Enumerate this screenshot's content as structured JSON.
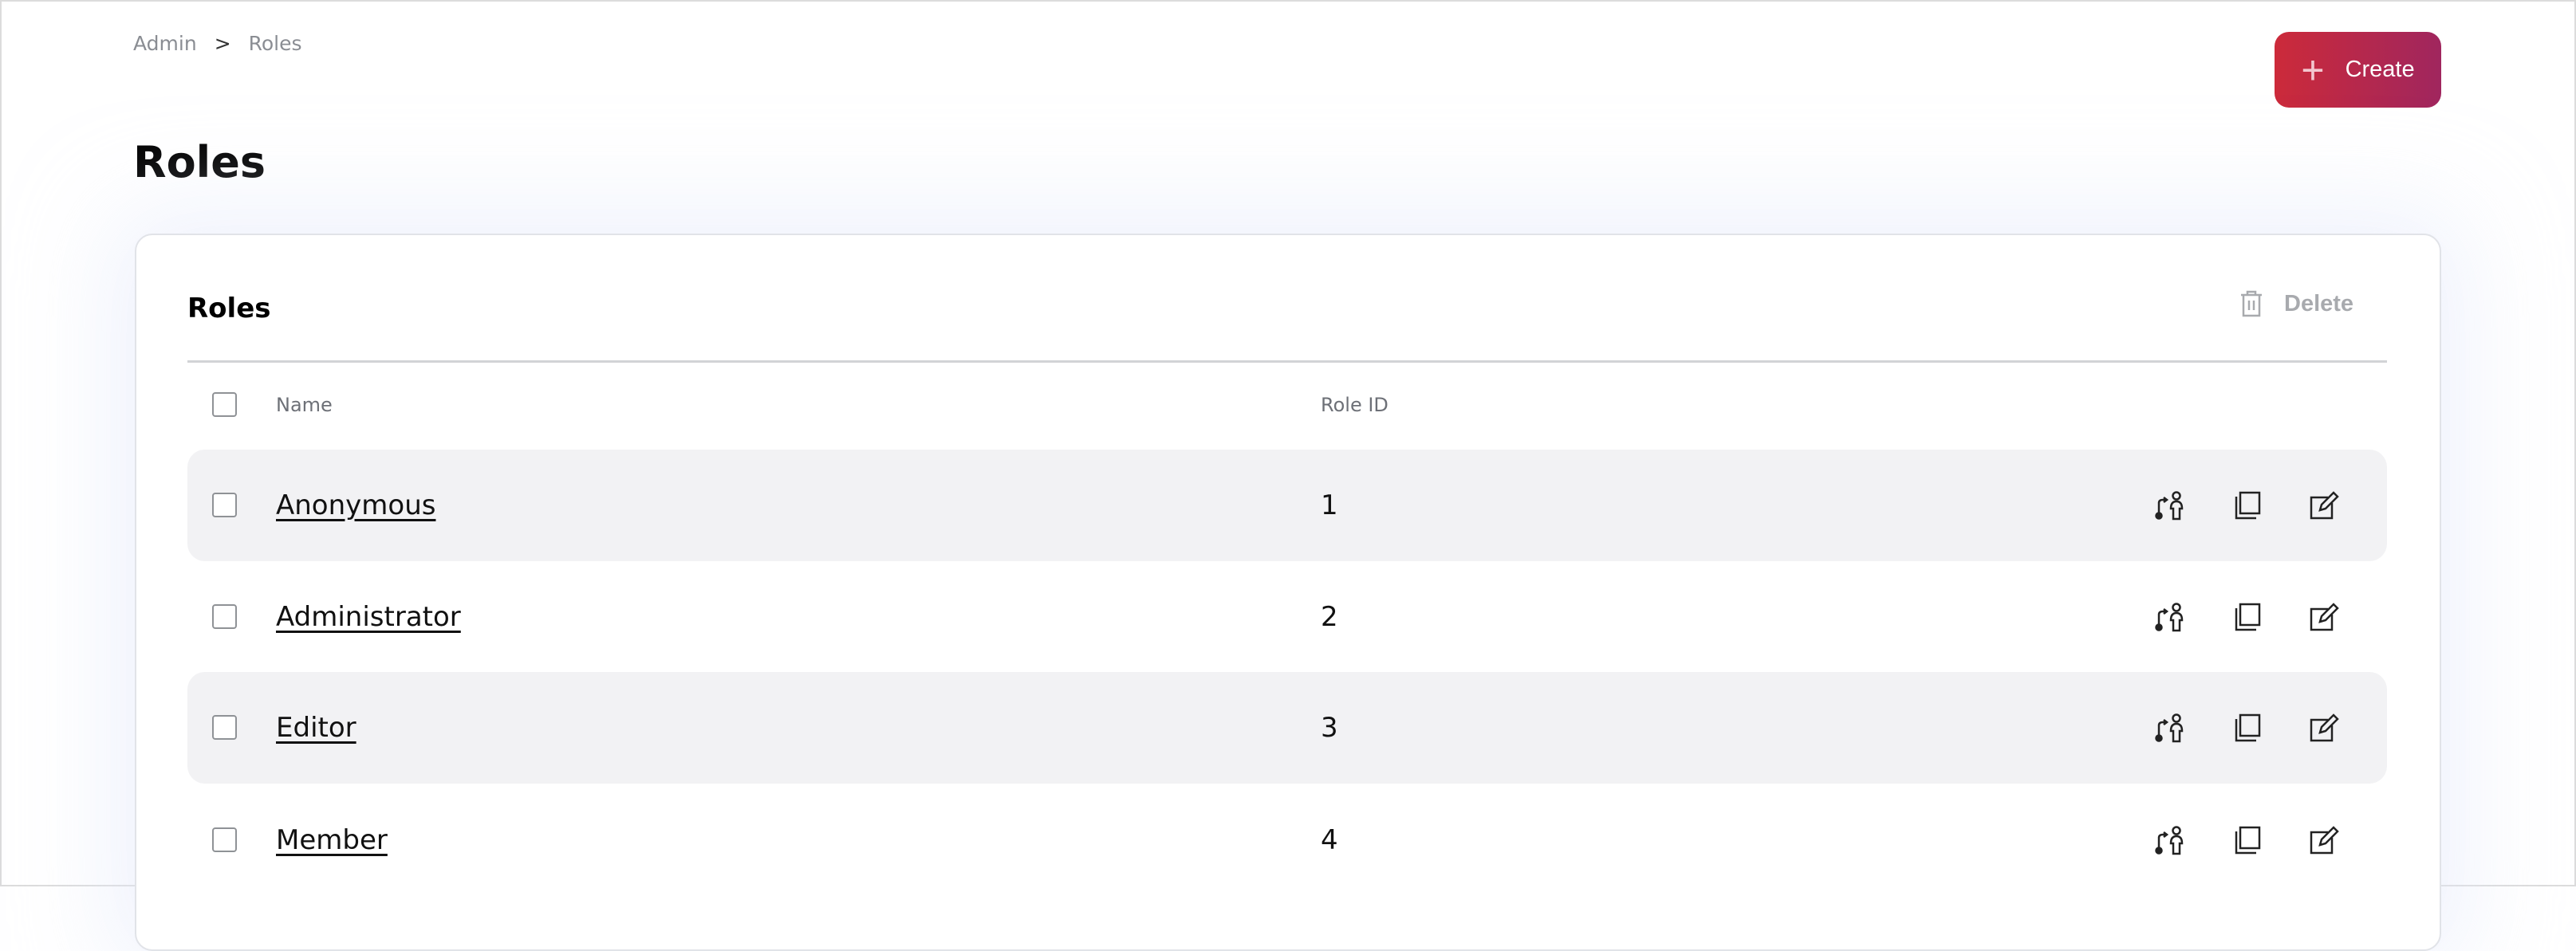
{
  "breadcrumb": {
    "items": [
      "Admin",
      "Roles"
    ],
    "separator": ">"
  },
  "page_title": "Roles",
  "create_button": {
    "label": "Create",
    "icon": "plus-icon"
  },
  "card": {
    "title": "Roles",
    "delete_label": "Delete",
    "delete_icon": "trash-icon"
  },
  "table": {
    "columns": [
      "Name",
      "Role ID"
    ],
    "rows": [
      {
        "name": "Anonymous",
        "id": "1"
      },
      {
        "name": "Administrator",
        "id": "2"
      },
      {
        "name": "Editor",
        "id": "3"
      },
      {
        "name": "Member",
        "id": "4"
      }
    ],
    "row_actions": [
      "assign-user-icon",
      "copy-icon",
      "edit-icon"
    ]
  },
  "colors": {
    "accent_start": "#cc2a3a",
    "accent_end": "#a0265e",
    "row_alt": "#f2f2f4"
  }
}
